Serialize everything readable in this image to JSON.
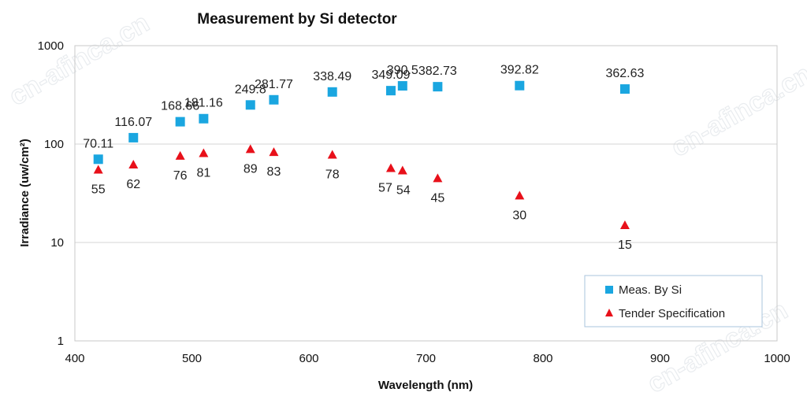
{
  "watermark": "cn-afinca.cn",
  "chart_data": {
    "type": "scatter",
    "title": "Measurement by Si detector",
    "xlabel": "Wavelength (nm)",
    "ylabel": "Irradiance (uw/cm²)",
    "xlim": [
      400,
      1000
    ],
    "ylim": [
      1,
      1000
    ],
    "yscale": "log",
    "x_ticks": [
      400,
      500,
      600,
      700,
      800,
      900,
      1000
    ],
    "y_ticks": [
      1,
      10,
      100,
      1000
    ],
    "grid": "horizontal",
    "legend_position": "bottom-right",
    "series": [
      {
        "name": "Meas. By Si",
        "marker": "square",
        "color": "#1aa6e0",
        "x": [
          420,
          450,
          490,
          510,
          550,
          570,
          620,
          670,
          680,
          710,
          780,
          870
        ],
        "y": [
          70.11,
          116.07,
          168.66,
          181.16,
          249.8,
          281.77,
          338.49,
          349.09,
          390.5,
          382.73,
          392.82,
          362.63
        ],
        "labels": [
          "70.11",
          "116.07",
          "168.66",
          "181.16",
          "249.8",
          "281.77",
          "338.49",
          "349.09",
          "390.5",
          "382.73",
          "392.82",
          "362.63"
        ]
      },
      {
        "name": "Tender Specification",
        "marker": "triangle",
        "color": "#e8101a",
        "x": [
          420,
          450,
          490,
          510,
          550,
          570,
          620,
          670,
          680,
          710,
          780,
          870
        ],
        "y": [
          55,
          62,
          76,
          81,
          89,
          83,
          78,
          57,
          54,
          45,
          30,
          15
        ],
        "labels": [
          "55",
          "62",
          "76",
          "81",
          "89",
          "83",
          "78",
          "57",
          "54",
          "45",
          "30",
          "15"
        ]
      }
    ]
  }
}
